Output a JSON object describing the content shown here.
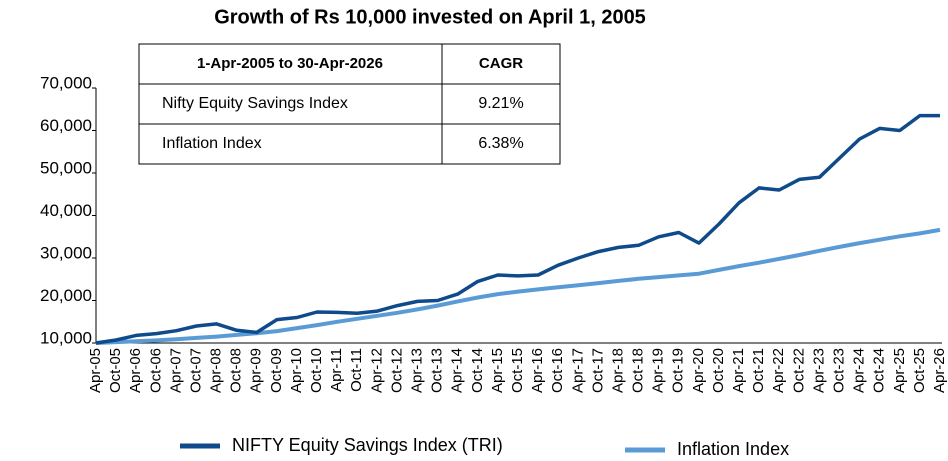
{
  "chart_data": {
    "type": "line",
    "title": "Growth of Rs 10,000 invested on April 1, 2005",
    "categories": [
      "Apr-05",
      "Oct-05",
      "Apr-06",
      "Oct-06",
      "Apr-07",
      "Oct-07",
      "Apr-08",
      "Oct-08",
      "Apr-09",
      "Oct-09",
      "Apr-10",
      "Oct-10",
      "Apr-11",
      "Oct-11",
      "Apr-12",
      "Oct-12",
      "Apr-13",
      "Oct-13",
      "Apr-14",
      "Oct-14",
      "Apr-15",
      "Oct-15",
      "Apr-16",
      "Oct-16",
      "Apr-17",
      "Oct-17",
      "Apr-18",
      "Oct-18",
      "Apr-19",
      "Oct-19",
      "Apr-20",
      "Oct-20",
      "Apr-21",
      "Oct-21",
      "Apr-22",
      "Oct-22",
      "Apr-23",
      "Oct-23",
      "Apr-24",
      "Oct-24",
      "Apr-25",
      "Oct-25",
      "Apr-26"
    ],
    "series": [
      {
        "name": "NIFTY Equity Savings Index (TRI)",
        "color": "#0f4a8a",
        "values": [
          10000,
          10700,
          11800,
          12200,
          12900,
          14000,
          14500,
          13000,
          12500,
          15500,
          16000,
          17300,
          17200,
          17000,
          17500,
          18800,
          19800,
          20000,
          21500,
          24500,
          26000,
          25800,
          26000,
          28300,
          30000,
          31500,
          32500,
          33000,
          35000,
          36000,
          33500,
          38000,
          43000,
          46500,
          46000,
          48500,
          49000,
          53500,
          58000,
          60500,
          60000,
          63500,
          63500
        ]
      },
      {
        "name": "Inflation Index",
        "color": "#5b9bd5",
        "values": [
          10000,
          10200,
          10400,
          10600,
          10900,
          11200,
          11500,
          11900,
          12300,
          12800,
          13500,
          14200,
          15000,
          15700,
          16400,
          17100,
          17900,
          18800,
          19800,
          20700,
          21500,
          22100,
          22600,
          23100,
          23600,
          24100,
          24600,
          25100,
          25500,
          25900,
          26300,
          27200,
          28100,
          28900,
          29800,
          30700,
          31700,
          32600,
          33500,
          34300,
          35100,
          35800,
          36600
        ]
      }
    ],
    "ylim": [
      10000,
      70000
    ],
    "yticks": [
      {
        "value": 10000,
        "label": "10,000"
      },
      {
        "value": 20000,
        "label": "20,000"
      },
      {
        "value": 30000,
        "label": "30,000"
      },
      {
        "value": 40000,
        "label": "40,000"
      },
      {
        "value": 50000,
        "label": "50,000"
      },
      {
        "value": 60000,
        "label": "60,000"
      },
      {
        "value": 70000,
        "label": "70,000"
      }
    ],
    "legend": "bottom"
  },
  "table": {
    "header": [
      "1-Apr-2005 to 30-Apr-2026",
      "CAGR"
    ],
    "rows": [
      [
        "Nifty Equity Savings Index",
        "9.21%"
      ],
      [
        "Inflation Index",
        "6.38%"
      ]
    ]
  }
}
